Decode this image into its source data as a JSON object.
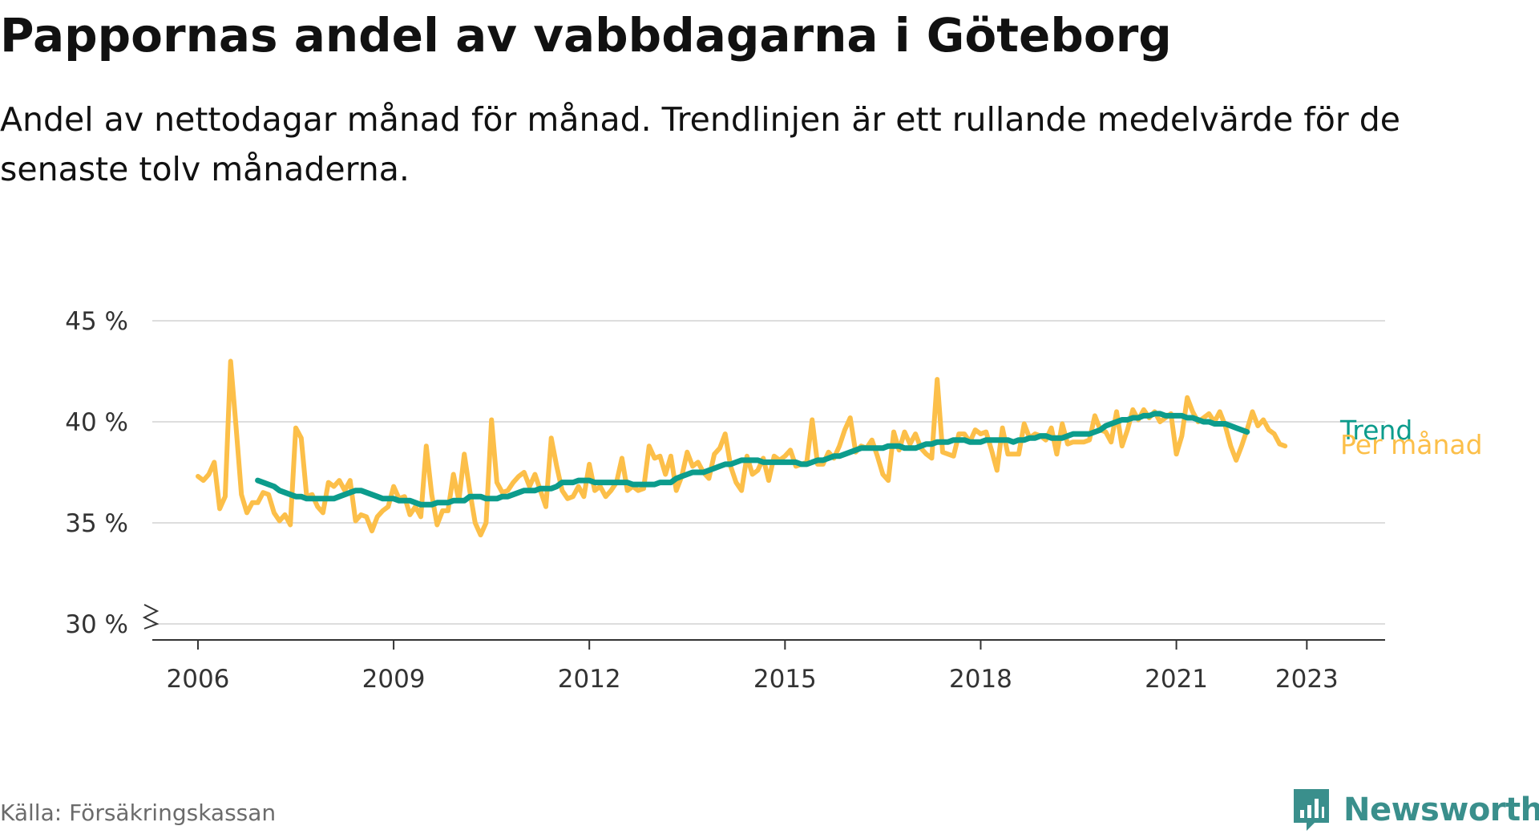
{
  "title": "Pappornas andel av vabbdagarna i Göteborg",
  "subtitle": "Andel av nettodagar månad för månad. Trendlinjen är ett rullande medelvärde för de senaste tolv månaderna.",
  "source": "Källa: Försäkringskassan",
  "brand": {
    "name": "Newsworthy",
    "icon": "bar-chart-logo-icon"
  },
  "colors": {
    "monthly": "#fcbf49",
    "trend": "#0c9c8c",
    "grid": "#dddddd",
    "axis": "#333333",
    "brand": "#3a8f8c"
  },
  "chart_data": {
    "type": "line",
    "x_unit": "year",
    "ylim": [
      30,
      45
    ],
    "xlim": [
      2005.3,
      2024.2
    ],
    "y_ticks": [
      30,
      35,
      40,
      45
    ],
    "y_tick_labels": [
      "30 %",
      "35 %",
      "40 %",
      "45 %"
    ],
    "x_ticks": [
      2006,
      2009,
      2012,
      2015,
      2018,
      2021,
      2023
    ],
    "x_tick_labels": [
      "2006",
      "2009",
      "2012",
      "2015",
      "2018",
      "2021",
      "2023"
    ],
    "y_axis_break": true,
    "grid": true,
    "series": [
      {
        "name": "Per månad",
        "x_start": 2006.0,
        "x_step": 0.083333,
        "values": [
          37.3,
          37.1,
          37.4,
          38.0,
          35.7,
          36.3,
          43.0,
          39.8,
          36.4,
          35.5,
          36.0,
          36.0,
          36.5,
          36.4,
          35.5,
          35.1,
          35.4,
          34.9,
          39.7,
          39.2,
          36.3,
          36.4,
          35.8,
          35.5,
          37.0,
          36.8,
          37.1,
          36.6,
          37.1,
          35.1,
          35.4,
          35.3,
          34.6,
          35.3,
          35.6,
          35.8,
          36.8,
          36.2,
          36.3,
          35.4,
          35.8,
          35.3,
          38.8,
          36.4,
          34.9,
          35.6,
          35.6,
          37.4,
          36.1,
          38.4,
          36.6,
          35.0,
          34.4,
          35.0,
          40.1,
          37.0,
          36.5,
          36.6,
          37.0,
          37.3,
          37.5,
          36.8,
          37.4,
          36.6,
          35.8,
          39.2,
          37.8,
          36.6,
          36.2,
          36.3,
          36.8,
          36.3,
          37.9,
          36.6,
          36.8,
          36.3,
          36.6,
          37.0,
          38.2,
          36.6,
          36.8,
          36.6,
          36.7,
          38.8,
          38.2,
          38.3,
          37.4,
          38.3,
          36.6,
          37.3,
          38.5,
          37.8,
          38.0,
          37.5,
          37.2,
          38.4,
          38.7,
          39.4,
          37.8,
          37.0,
          36.6,
          38.3,
          37.4,
          37.6,
          38.2,
          37.1,
          38.3,
          38.1,
          38.3,
          38.6,
          37.8,
          37.9,
          38.0,
          40.1,
          37.9,
          37.9,
          38.5,
          38.2,
          38.8,
          39.6,
          40.2,
          38.5,
          38.8,
          38.7,
          39.1,
          38.3,
          37.4,
          37.1,
          39.5,
          38.6,
          39.5,
          38.9,
          39.4,
          38.7,
          38.4,
          38.2,
          42.1,
          38.5,
          38.4,
          38.3,
          39.4,
          39.4,
          39.0,
          39.6,
          39.4,
          39.5,
          38.6,
          37.6,
          39.7,
          38.4,
          38.4,
          38.4,
          39.9,
          39.2,
          39.4,
          39.3,
          39.1,
          39.7,
          38.4,
          39.9,
          38.9,
          39.0,
          39.0,
          39.0,
          39.1,
          40.3,
          39.6,
          39.5,
          39.0,
          40.5,
          38.8,
          39.6,
          40.6,
          40.1,
          40.6,
          40.2,
          40.5,
          40.0,
          40.2,
          40.4,
          38.4,
          39.3,
          41.2,
          40.5,
          40.0,
          40.2,
          40.4,
          40.0,
          40.5,
          39.8,
          38.8,
          38.1,
          38.8,
          39.6,
          40.5,
          39.8,
          40.1,
          39.6,
          39.4,
          38.9,
          38.8
        ]
      },
      {
        "name": "Trend",
        "x_start": 2006.917,
        "x_step": 0.083333,
        "values": [
          37.1,
          37.0,
          36.9,
          36.8,
          36.6,
          36.5,
          36.4,
          36.3,
          36.3,
          36.2,
          36.2,
          36.2,
          36.2,
          36.2,
          36.2,
          36.3,
          36.4,
          36.5,
          36.6,
          36.6,
          36.5,
          36.4,
          36.3,
          36.2,
          36.2,
          36.2,
          36.1,
          36.1,
          36.1,
          36.0,
          35.9,
          35.9,
          35.9,
          36.0,
          36.0,
          36.0,
          36.1,
          36.1,
          36.1,
          36.3,
          36.3,
          36.3,
          36.2,
          36.2,
          36.2,
          36.3,
          36.3,
          36.4,
          36.5,
          36.6,
          36.6,
          36.6,
          36.7,
          36.7,
          36.7,
          36.8,
          37.0,
          37.0,
          37.0,
          37.1,
          37.1,
          37.1,
          37.0,
          37.0,
          37.0,
          37.0,
          37.0,
          37.0,
          37.0,
          36.9,
          36.9,
          36.9,
          36.9,
          36.9,
          37.0,
          37.0,
          37.0,
          37.2,
          37.3,
          37.4,
          37.5,
          37.5,
          37.5,
          37.6,
          37.7,
          37.8,
          37.9,
          37.9,
          38.0,
          38.1,
          38.1,
          38.1,
          38.1,
          38.0,
          38.0,
          38.0,
          38.0,
          38.0,
          38.0,
          38.0,
          37.9,
          37.9,
          38.0,
          38.1,
          38.1,
          38.2,
          38.3,
          38.3,
          38.4,
          38.5,
          38.6,
          38.7,
          38.7,
          38.7,
          38.7,
          38.7,
          38.8,
          38.8,
          38.8,
          38.7,
          38.7,
          38.7,
          38.8,
          38.9,
          38.9,
          39.0,
          39.0,
          39.0,
          39.1,
          39.1,
          39.1,
          39.0,
          39.0,
          39.0,
          39.1,
          39.1,
          39.1,
          39.1,
          39.1,
          39.0,
          39.1,
          39.1,
          39.2,
          39.2,
          39.3,
          39.3,
          39.2,
          39.2,
          39.2,
          39.3,
          39.4,
          39.4,
          39.4,
          39.4,
          39.5,
          39.6,
          39.8,
          39.9,
          40.0,
          40.1,
          40.1,
          40.2,
          40.2,
          40.3,
          40.3,
          40.4,
          40.4,
          40.3,
          40.3,
          40.3,
          40.3,
          40.2,
          40.2,
          40.1,
          40.0,
          40.0,
          39.9,
          39.9,
          39.9,
          39.8,
          39.7,
          39.6,
          39.5
        ]
      }
    ]
  }
}
